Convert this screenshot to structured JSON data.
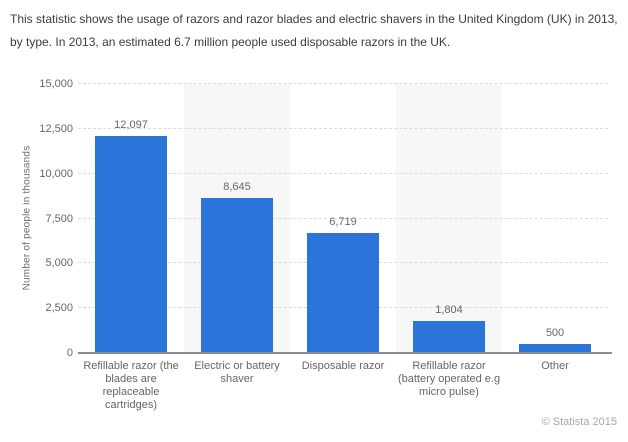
{
  "description": "This statistic shows the usage of razors and razor blades and electric shavers in the United Kingdom (UK) in 2013, by type. In 2013, an estimated 6.7 million people used disposable razors in the UK.",
  "footer": {
    "copyright": "© Statista 2015"
  },
  "chart_data": {
    "type": "bar",
    "title": "",
    "categories": [
      "Refillable razor (the blades are replaceable cartridges)",
      "Electric or battery shaver",
      "Disposable razor",
      "Refillable razor (battery operated e.g micro pulse)",
      "Other"
    ],
    "values": [
      12097,
      8645,
      6719,
      1804,
      500
    ],
    "value_labels": [
      "12,097",
      "8,645",
      "6,719",
      "1,804",
      "500"
    ],
    "xlabel": "",
    "ylabel": "Number of people in thousands",
    "ylim": [
      0,
      15000
    ],
    "ytick_step": 2500,
    "ytick_labels": [
      "0",
      "2,500",
      "5,000",
      "7,500",
      "10,000",
      "12,500",
      "15,000"
    ],
    "grid": true,
    "legend": false,
    "bar_color": "#2b74da",
    "band_color": "#f7f7f7",
    "shaded_columns": [
      1,
      3
    ]
  }
}
